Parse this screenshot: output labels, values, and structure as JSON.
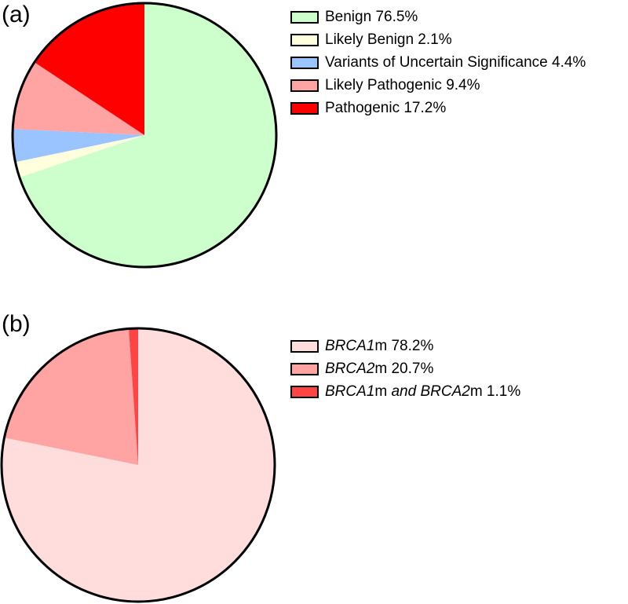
{
  "chart_data": [
    {
      "type": "pie",
      "panel_label": "(a)",
      "start_angle_deg": 0,
      "direction": "clockwise",
      "slices": [
        {
          "name": "Benign",
          "value": 76.5,
          "color": "#ccffcc",
          "label_parts": [
            {
              "text": "Benign 76.5%",
              "italic": false
            }
          ]
        },
        {
          "name": "Likely Benign",
          "value": 2.1,
          "color": "#ffffdd",
          "label_parts": [
            {
              "text": "Likely Benign 2.1%",
              "italic": false
            }
          ]
        },
        {
          "name": "Variants of Uncertain Significance",
          "value": 4.4,
          "color": "#99c4ff",
          "label_parts": [
            {
              "text": "Variants of Uncertain Significance 4.4%",
              "italic": false
            }
          ]
        },
        {
          "name": "Likely Pathogenic",
          "value": 9.4,
          "color": "#ffa3a3",
          "label_parts": [
            {
              "text": "Likely Pathogenic 9.4%",
              "italic": false
            }
          ]
        },
        {
          "name": "Pathogenic",
          "value": 17.2,
          "color": "#ff0000",
          "label_parts": [
            {
              "text": "Pathogenic 17.2%",
              "italic": false
            }
          ]
        }
      ]
    },
    {
      "type": "pie",
      "panel_label": "(b)",
      "start_angle_deg": 0,
      "direction": "clockwise",
      "slices": [
        {
          "name": "BRCA1m",
          "value": 78.2,
          "color": "#ffdddd",
          "label_parts": [
            {
              "text": "BRCA1",
              "italic": true
            },
            {
              "text": "m 78.2%",
              "italic": false
            }
          ]
        },
        {
          "name": "BRCA2m",
          "value": 20.7,
          "color": "#ffa3a3",
          "label_parts": [
            {
              "text": "BRCA2",
              "italic": true
            },
            {
              "text": "m 20.7%",
              "italic": false
            }
          ]
        },
        {
          "name": "BRCA1m and BRCA2m",
          "value": 1.1,
          "color": "#ff4444",
          "label_parts": [
            {
              "text": "BRCA1",
              "italic": true
            },
            {
              "text": "m ",
              "italic": false
            },
            {
              "text": "and BRCA2",
              "italic": true
            },
            {
              "text": "m 1.1%",
              "italic": false
            }
          ]
        }
      ]
    }
  ]
}
